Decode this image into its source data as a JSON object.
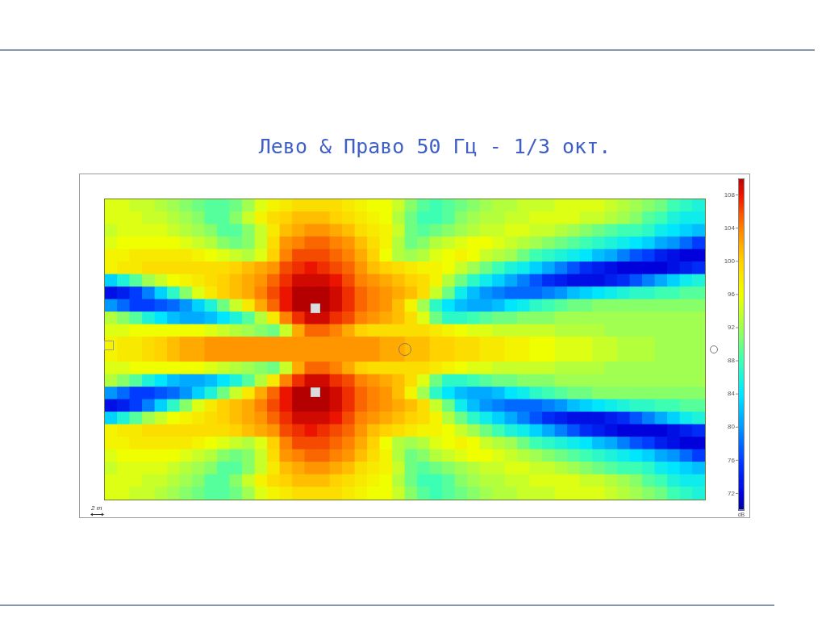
{
  "chart_data": {
    "type": "heatmap",
    "title": "Лево & Право 50 Гц - 1/3 окт.",
    "categories": [
      null,
      null,
      null,
      null,
      null,
      null,
      null,
      null,
      null,
      null,
      null,
      null,
      null,
      null,
      null,
      null,
      null,
      null,
      null,
      null,
      null,
      null,
      null,
      null,
      null,
      null,
      null,
      null,
      null,
      null,
      null,
      null,
      null,
      null,
      null,
      null,
      null,
      null,
      null,
      null,
      null,
      null,
      null,
      null,
      null,
      null,
      null,
      null
    ],
    "y_categories": [
      null,
      null,
      null,
      null,
      null,
      null,
      null,
      null,
      null,
      null,
      null,
      null,
      null,
      null,
      null,
      null,
      null,
      null,
      null,
      null,
      null,
      null,
      null,
      null
    ],
    "cells": [
      [
        95,
        95,
        94,
        94,
        93,
        92,
        91,
        90,
        89,
        89,
        90,
        92,
        95,
        97,
        98,
        99,
        99,
        99,
        99,
        98,
        97,
        96,
        96,
        94,
        91,
        89,
        88,
        89,
        90,
        91,
        92,
        93,
        93,
        94,
        94,
        94,
        95,
        95,
        95,
        95,
        94,
        93,
        92,
        91,
        90,
        88,
        87,
        86
      ],
      [
        95,
        95,
        95,
        94,
        94,
        93,
        92,
        91,
        89,
        89,
        91,
        94,
        97,
        99,
        100,
        101,
        101,
        101,
        100,
        99,
        98,
        97,
        96,
        93,
        90,
        88,
        88,
        89,
        91,
        92,
        93,
        93,
        94,
        94,
        95,
        95,
        95,
        95,
        94,
        94,
        93,
        92,
        91,
        89,
        88,
        86,
        85,
        85
      ],
      [
        94,
        95,
        95,
        95,
        95,
        94,
        93,
        92,
        91,
        89,
        89,
        91,
        94,
        98,
        101,
        102,
        103,
        103,
        102,
        101,
        99,
        98,
        97,
        94,
        90,
        89,
        90,
        91,
        92,
        93,
        94,
        94,
        95,
        95,
        94,
        94,
        93,
        92,
        91,
        90,
        89,
        88,
        88,
        87,
        85,
        84,
        83,
        82
      ],
      [
        95,
        96,
        96,
        96,
        96,
        96,
        95,
        94,
        93,
        91,
        90,
        91,
        94,
        99,
        103,
        104,
        105,
        105,
        104,
        103,
        101,
        99,
        97,
        93,
        90,
        91,
        93,
        94,
        95,
        96,
        96,
        95,
        94,
        93,
        92,
        91,
        90,
        89,
        88,
        87,
        86,
        85,
        84,
        83,
        81,
        80,
        78,
        76
      ],
      [
        97,
        97,
        98,
        98,
        98,
        98,
        98,
        97,
        96,
        95,
        94,
        93,
        95,
        100,
        104,
        106,
        106,
        106,
        105,
        104,
        102,
        100,
        96,
        93,
        92,
        93,
        95,
        96,
        97,
        96,
        94,
        93,
        92,
        90,
        88,
        87,
        86,
        85,
        84,
        82,
        81,
        79,
        77,
        76,
        74,
        73,
        72,
        72
      ],
      [
        97,
        98,
        98,
        99,
        99,
        99,
        99,
        99,
        99,
        99,
        100,
        101,
        102,
        103,
        106,
        107,
        108,
        107,
        106,
        105,
        103,
        101,
        100,
        99,
        98,
        97,
        97,
        96,
        94,
        92,
        90,
        88,
        86,
        85,
        83,
        81,
        79,
        77,
        75,
        74,
        73,
        72,
        72,
        72,
        72,
        73,
        74,
        75
      ],
      [
        83,
        86,
        89,
        92,
        94,
        96,
        97,
        98,
        99,
        100,
        101,
        102,
        103,
        105,
        107,
        109,
        109,
        109,
        108,
        106,
        104,
        103,
        102,
        101,
        100,
        99,
        97,
        93,
        90,
        87,
        85,
        83,
        81,
        79,
        77,
        75,
        74,
        73,
        73,
        73,
        74,
        75,
        77,
        79,
        81,
        83,
        85,
        86
      ],
      [
        73,
        74,
        76,
        79,
        83,
        87,
        91,
        95,
        98,
        100,
        101,
        102,
        104,
        106,
        108,
        110,
        110,
        110,
        109,
        107,
        105,
        104,
        103,
        102,
        101,
        99,
        94,
        90,
        85,
        82,
        80,
        79,
        78,
        78,
        78,
        79,
        80,
        82,
        83,
        84,
        85,
        86,
        87,
        87,
        88,
        88,
        89,
        89
      ],
      [
        80,
        78,
        76,
        76,
        77,
        78,
        80,
        83,
        86,
        90,
        94,
        98,
        102,
        105,
        108,
        110,
        110,
        110,
        109,
        107,
        105,
        104,
        103,
        101,
        97,
        92,
        87,
        84,
        82,
        81,
        81,
        82,
        84,
        85,
        87,
        88,
        89,
        90,
        90,
        91,
        91,
        91,
        91,
        91,
        91,
        91,
        91,
        91
      ],
      [
        93,
        91,
        89,
        86,
        84,
        82,
        81,
        81,
        82,
        84,
        86,
        89,
        93,
        98,
        104,
        107,
        109,
        109,
        107,
        106,
        104,
        103,
        102,
        101,
        99,
        95,
        90,
        87,
        87,
        88,
        89,
        90,
        90,
        91,
        91,
        91,
        92,
        92,
        92,
        92,
        92,
        92,
        92,
        92,
        92,
        92,
        92,
        92
      ],
      [
        95,
        95,
        96,
        96,
        96,
        96,
        96,
        96,
        95,
        94,
        93,
        92,
        91,
        90,
        94,
        102,
        105,
        105,
        104,
        102,
        100,
        99,
        99,
        99,
        99,
        99,
        98,
        97,
        96,
        95,
        95,
        94,
        94,
        94,
        94,
        94,
        93,
        93,
        93,
        93,
        92,
        92,
        92,
        92,
        92,
        92,
        92,
        92
      ],
      [
        97,
        98,
        98,
        99,
        100,
        101,
        102,
        102,
        103,
        103,
        103,
        103,
        103,
        103,
        103,
        103,
        103,
        103,
        103,
        103,
        103,
        103,
        102,
        102,
        101,
        101,
        100,
        100,
        99,
        99,
        98,
        98,
        97,
        97,
        96,
        96,
        95,
        95,
        95,
        94,
        94,
        93,
        93,
        93,
        92,
        92,
        92,
        92
      ],
      [
        97,
        98,
        98,
        99,
        100,
        101,
        102,
        102,
        103,
        103,
        103,
        103,
        103,
        103,
        103,
        103,
        103,
        103,
        103,
        103,
        103,
        103,
        102,
        102,
        101,
        101,
        100,
        100,
        99,
        99,
        98,
        98,
        97,
        97,
        96,
        96,
        95,
        95,
        95,
        94,
        94,
        93,
        93,
        93,
        92,
        92,
        92,
        92
      ],
      [
        95,
        95,
        96,
        96,
        96,
        96,
        96,
        96,
        95,
        94,
        93,
        92,
        91,
        90,
        94,
        102,
        105,
        105,
        104,
        102,
        100,
        99,
        99,
        99,
        99,
        99,
        98,
        97,
        96,
        95,
        95,
        94,
        94,
        94,
        94,
        94,
        93,
        93,
        93,
        93,
        92,
        92,
        92,
        92,
        92,
        92,
        92,
        92
      ],
      [
        93,
        91,
        89,
        86,
        84,
        82,
        81,
        81,
        82,
        84,
        86,
        89,
        93,
        98,
        104,
        107,
        109,
        109,
        107,
        106,
        104,
        103,
        102,
        101,
        99,
        95,
        90,
        87,
        87,
        88,
        89,
        90,
        90,
        91,
        91,
        91,
        92,
        92,
        92,
        92,
        92,
        92,
        92,
        92,
        92,
        92,
        92,
        92
      ],
      [
        80,
        78,
        76,
        76,
        77,
        78,
        80,
        83,
        86,
        90,
        94,
        98,
        102,
        105,
        108,
        110,
        110,
        110,
        109,
        107,
        105,
        104,
        103,
        101,
        97,
        92,
        87,
        84,
        82,
        81,
        81,
        82,
        84,
        85,
        87,
        88,
        89,
        90,
        90,
        91,
        91,
        91,
        91,
        91,
        91,
        91,
        91,
        91
      ],
      [
        73,
        74,
        76,
        79,
        83,
        87,
        91,
        95,
        98,
        100,
        101,
        102,
        104,
        106,
        108,
        110,
        110,
        110,
        109,
        107,
        105,
        104,
        103,
        102,
        101,
        99,
        94,
        90,
        85,
        82,
        80,
        79,
        78,
        78,
        78,
        79,
        80,
        82,
        83,
        84,
        85,
        86,
        87,
        87,
        88,
        88,
        89,
        89
      ],
      [
        83,
        86,
        89,
        92,
        94,
        96,
        97,
        98,
        99,
        100,
        101,
        102,
        103,
        105,
        107,
        109,
        109,
        109,
        108,
        106,
        104,
        103,
        102,
        101,
        100,
        99,
        97,
        93,
        90,
        87,
        85,
        83,
        81,
        79,
        77,
        75,
        74,
        73,
        73,
        73,
        74,
        75,
        77,
        79,
        81,
        83,
        85,
        86
      ],
      [
        97,
        98,
        98,
        99,
        99,
        99,
        99,
        99,
        99,
        99,
        100,
        101,
        102,
        103,
        106,
        107,
        108,
        107,
        106,
        105,
        103,
        101,
        100,
        99,
        98,
        97,
        97,
        96,
        94,
        92,
        90,
        88,
        86,
        85,
        83,
        81,
        79,
        77,
        75,
        74,
        73,
        72,
        72,
        72,
        72,
        73,
        74,
        75
      ],
      [
        97,
        97,
        98,
        98,
        98,
        98,
        98,
        97,
        96,
        95,
        94,
        93,
        95,
        100,
        104,
        106,
        106,
        106,
        105,
        104,
        102,
        100,
        96,
        93,
        92,
        93,
        95,
        96,
        97,
        96,
        94,
        93,
        92,
        90,
        88,
        87,
        86,
        85,
        84,
        82,
        81,
        79,
        77,
        76,
        74,
        73,
        72,
        72
      ],
      [
        95,
        96,
        96,
        96,
        96,
        96,
        95,
        94,
        93,
        91,
        90,
        91,
        94,
        99,
        103,
        104,
        105,
        105,
        104,
        103,
        101,
        99,
        97,
        93,
        90,
        91,
        93,
        94,
        95,
        96,
        96,
        95,
        94,
        93,
        92,
        91,
        90,
        89,
        88,
        87,
        86,
        85,
        84,
        83,
        81,
        80,
        78,
        76
      ],
      [
        94,
        95,
        95,
        95,
        95,
        94,
        93,
        92,
        91,
        89,
        89,
        91,
        94,
        98,
        101,
        102,
        103,
        103,
        102,
        101,
        99,
        98,
        97,
        94,
        90,
        89,
        90,
        91,
        92,
        93,
        94,
        94,
        95,
        95,
        94,
        94,
        93,
        92,
        91,
        90,
        89,
        88,
        88,
        87,
        85,
        84,
        83,
        82
      ],
      [
        95,
        95,
        95,
        94,
        94,
        93,
        92,
        91,
        89,
        89,
        91,
        94,
        97,
        99,
        100,
        101,
        101,
        101,
        100,
        99,
        98,
        97,
        96,
        93,
        90,
        88,
        88,
        89,
        91,
        92,
        93,
        93,
        94,
        94,
        95,
        95,
        95,
        95,
        94,
        94,
        93,
        92,
        91,
        89,
        88,
        86,
        85,
        85
      ],
      [
        95,
        95,
        94,
        94,
        93,
        92,
        91,
        90,
        89,
        89,
        90,
        92,
        95,
        97,
        98,
        99,
        99,
        99,
        99,
        98,
        97,
        96,
        96,
        94,
        91,
        89,
        88,
        89,
        90,
        91,
        92,
        93,
        93,
        94,
        94,
        94,
        95,
        95,
        95,
        95,
        94,
        93,
        92,
        91,
        90,
        88,
        87,
        86
      ]
    ],
    "clim": [
      70,
      110
    ],
    "cticks": [
      72,
      76,
      80,
      84,
      88,
      92,
      96,
      100,
      104,
      108
    ],
    "clabel": "dB",
    "annotations": [
      "2 m"
    ]
  }
}
